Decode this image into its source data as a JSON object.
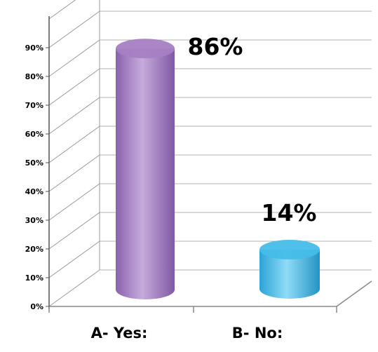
{
  "chart_data": {
    "type": "bar",
    "categories": [
      "A- Yes:",
      "B- No:"
    ],
    "values": [
      86,
      14
    ],
    "data_labels": [
      "86%",
      "14%"
    ],
    "y_ticks": [
      "0%",
      "10%",
      "20%",
      "30%",
      "40%",
      "50%",
      "60%",
      "70%",
      "80%",
      "90%"
    ],
    "ylim": [
      0,
      100
    ],
    "grid": true,
    "bar_colors": [
      "#a67fc4",
      "#45bde8"
    ]
  }
}
